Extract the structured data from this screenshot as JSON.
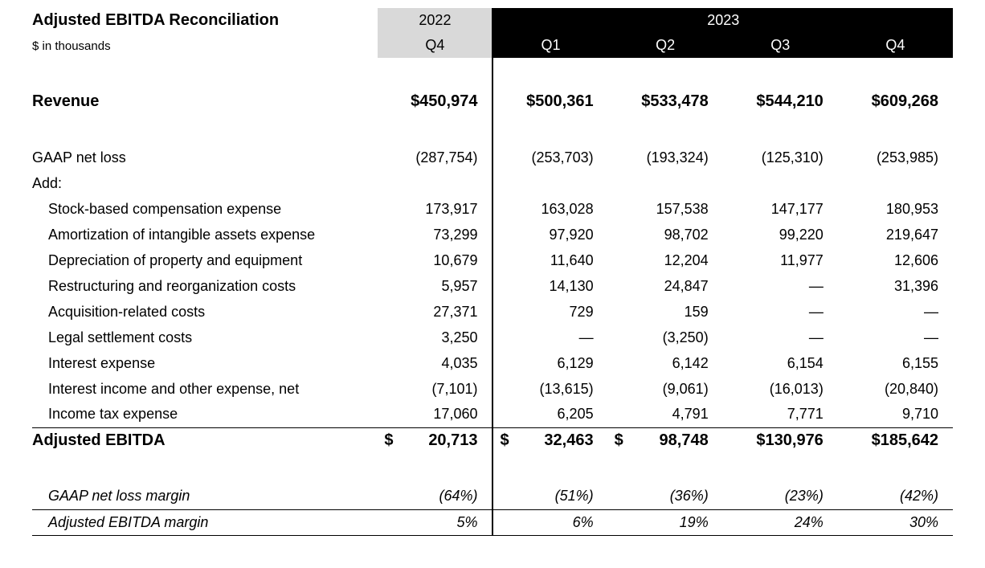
{
  "header": {
    "title": "Adjusted EBITDA Reconciliation",
    "subtitle": "$ in thousands",
    "year_a": "2022",
    "year_b": "2023",
    "quarters_a": [
      "Q4"
    ],
    "quarters_b": [
      "Q1",
      "Q2",
      "Q3",
      "Q4"
    ]
  },
  "rows": {
    "revenue": {
      "label": "Revenue",
      "values": [
        "$450,974",
        "$500,361",
        "$533,478",
        "$544,210",
        "$609,268"
      ]
    },
    "gaap_net_loss": {
      "label": "GAAP net loss",
      "values": [
        "(287,754)",
        "(253,703)",
        "(193,324)",
        "(125,310)",
        "(253,985)"
      ]
    },
    "add_label": "Add:",
    "sbc": {
      "label": "Stock-based compensation expense",
      "values": [
        "173,917",
        "163,028",
        "157,538",
        "147,177",
        "180,953"
      ]
    },
    "amort": {
      "label": "Amortization of intangible assets expense",
      "values": [
        "73,299",
        "97,920",
        "98,702",
        "99,220",
        "219,647"
      ]
    },
    "depr": {
      "label": "Depreciation of property and equipment",
      "values": [
        "10,679",
        "11,640",
        "12,204",
        "11,977",
        "12,606"
      ]
    },
    "restruct": {
      "label": "Restructuring and reorganization costs",
      "values": [
        "5,957",
        "14,130",
        "24,847",
        "—",
        "31,396"
      ]
    },
    "acq": {
      "label": "Acquisition-related costs",
      "values": [
        "27,371",
        "729",
        "159",
        "—",
        "—"
      ]
    },
    "legal": {
      "label": "Legal settlement costs",
      "values": [
        "3,250",
        "—",
        "(3,250)",
        "—",
        "—"
      ]
    },
    "int_exp": {
      "label": "Interest expense",
      "values": [
        "4,035",
        "6,129",
        "6,142",
        "6,154",
        "6,155"
      ]
    },
    "int_inc": {
      "label": "Interest income and other expense, net",
      "values": [
        "(7,101)",
        "(13,615)",
        "(9,061)",
        "(16,013)",
        "(20,840)"
      ]
    },
    "tax": {
      "label": "Income tax expense",
      "values": [
        "17,060",
        "6,205",
        "4,791",
        "7,771",
        "9,710"
      ]
    },
    "adj_ebitda": {
      "label": "Adjusted EBITDA",
      "dollar": "$",
      "values": [
        "20,713",
        "32,463",
        "98,748",
        "$130,976",
        "$185,642"
      ]
    },
    "gaap_margin": {
      "label": "GAAP net loss margin",
      "values": [
        "(64%)",
        "(51%)",
        "(36%)",
        "(23%)",
        "(42%)"
      ]
    },
    "ebitda_margin": {
      "label": "Adjusted EBITDA margin",
      "values": [
        "5%",
        "6%",
        "19%",
        "24%",
        "30%"
      ]
    }
  },
  "style": {
    "type": "table",
    "header_dark_bg": "#000000",
    "header_dark_fg": "#ffffff",
    "header_gray_bg": "#d9d9d9",
    "page_bg": "#ffffff",
    "text_color": "#000000",
    "border_color": "#000000",
    "font_size_body": 18,
    "font_size_title": 20,
    "font_size_subtitle": 15
  }
}
